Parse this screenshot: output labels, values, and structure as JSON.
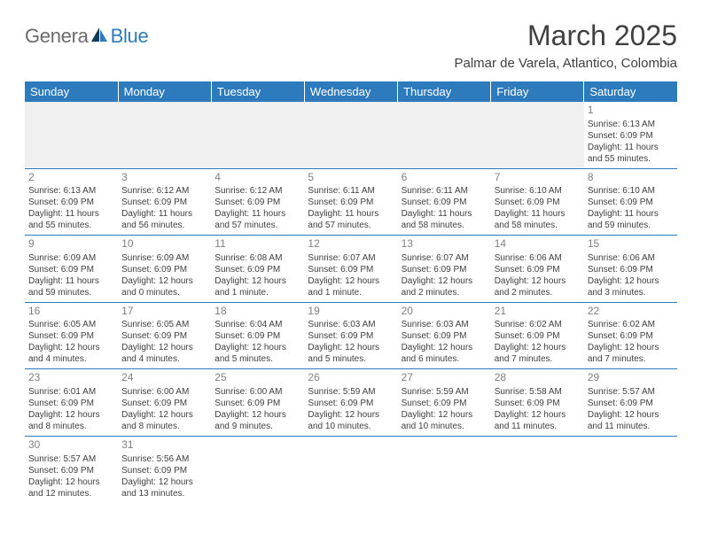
{
  "logo": {
    "text1": "Genera",
    "text2": "Blue"
  },
  "title": "March 2025",
  "location": "Palmar de Varela, Atlantico, Colombia",
  "colors": {
    "header_bg": "#2d7bbd",
    "header_text": "#ffffff",
    "border": "#2d7bbd",
    "daynum": "#808080",
    "body_text": "#404040",
    "empty_bg": "#f0f0f0",
    "logo_gray": "#6b6b6b",
    "logo_blue": "#2d7bbd"
  },
  "weekdays": [
    "Sunday",
    "Monday",
    "Tuesday",
    "Wednesday",
    "Thursday",
    "Friday",
    "Saturday"
  ],
  "weeks": [
    [
      null,
      null,
      null,
      null,
      null,
      null,
      {
        "d": "1",
        "sr": "Sunrise: 6:13 AM",
        "ss": "Sunset: 6:09 PM",
        "dl1": "Daylight: 11 hours",
        "dl2": "and 55 minutes."
      }
    ],
    [
      {
        "d": "2",
        "sr": "Sunrise: 6:13 AM",
        "ss": "Sunset: 6:09 PM",
        "dl1": "Daylight: 11 hours",
        "dl2": "and 55 minutes."
      },
      {
        "d": "3",
        "sr": "Sunrise: 6:12 AM",
        "ss": "Sunset: 6:09 PM",
        "dl1": "Daylight: 11 hours",
        "dl2": "and 56 minutes."
      },
      {
        "d": "4",
        "sr": "Sunrise: 6:12 AM",
        "ss": "Sunset: 6:09 PM",
        "dl1": "Daylight: 11 hours",
        "dl2": "and 57 minutes."
      },
      {
        "d": "5",
        "sr": "Sunrise: 6:11 AM",
        "ss": "Sunset: 6:09 PM",
        "dl1": "Daylight: 11 hours",
        "dl2": "and 57 minutes."
      },
      {
        "d": "6",
        "sr": "Sunrise: 6:11 AM",
        "ss": "Sunset: 6:09 PM",
        "dl1": "Daylight: 11 hours",
        "dl2": "and 58 minutes."
      },
      {
        "d": "7",
        "sr": "Sunrise: 6:10 AM",
        "ss": "Sunset: 6:09 PM",
        "dl1": "Daylight: 11 hours",
        "dl2": "and 58 minutes."
      },
      {
        "d": "8",
        "sr": "Sunrise: 6:10 AM",
        "ss": "Sunset: 6:09 PM",
        "dl1": "Daylight: 11 hours",
        "dl2": "and 59 minutes."
      }
    ],
    [
      {
        "d": "9",
        "sr": "Sunrise: 6:09 AM",
        "ss": "Sunset: 6:09 PM",
        "dl1": "Daylight: 11 hours",
        "dl2": "and 59 minutes."
      },
      {
        "d": "10",
        "sr": "Sunrise: 6:09 AM",
        "ss": "Sunset: 6:09 PM",
        "dl1": "Daylight: 12 hours",
        "dl2": "and 0 minutes."
      },
      {
        "d": "11",
        "sr": "Sunrise: 6:08 AM",
        "ss": "Sunset: 6:09 PM",
        "dl1": "Daylight: 12 hours",
        "dl2": "and 1 minute."
      },
      {
        "d": "12",
        "sr": "Sunrise: 6:07 AM",
        "ss": "Sunset: 6:09 PM",
        "dl1": "Daylight: 12 hours",
        "dl2": "and 1 minute."
      },
      {
        "d": "13",
        "sr": "Sunrise: 6:07 AM",
        "ss": "Sunset: 6:09 PM",
        "dl1": "Daylight: 12 hours",
        "dl2": "and 2 minutes."
      },
      {
        "d": "14",
        "sr": "Sunrise: 6:06 AM",
        "ss": "Sunset: 6:09 PM",
        "dl1": "Daylight: 12 hours",
        "dl2": "and 2 minutes."
      },
      {
        "d": "15",
        "sr": "Sunrise: 6:06 AM",
        "ss": "Sunset: 6:09 PM",
        "dl1": "Daylight: 12 hours",
        "dl2": "and 3 minutes."
      }
    ],
    [
      {
        "d": "16",
        "sr": "Sunrise: 6:05 AM",
        "ss": "Sunset: 6:09 PM",
        "dl1": "Daylight: 12 hours",
        "dl2": "and 4 minutes."
      },
      {
        "d": "17",
        "sr": "Sunrise: 6:05 AM",
        "ss": "Sunset: 6:09 PM",
        "dl1": "Daylight: 12 hours",
        "dl2": "and 4 minutes."
      },
      {
        "d": "18",
        "sr": "Sunrise: 6:04 AM",
        "ss": "Sunset: 6:09 PM",
        "dl1": "Daylight: 12 hours",
        "dl2": "and 5 minutes."
      },
      {
        "d": "19",
        "sr": "Sunrise: 6:03 AM",
        "ss": "Sunset: 6:09 PM",
        "dl1": "Daylight: 12 hours",
        "dl2": "and 5 minutes."
      },
      {
        "d": "20",
        "sr": "Sunrise: 6:03 AM",
        "ss": "Sunset: 6:09 PM",
        "dl1": "Daylight: 12 hours",
        "dl2": "and 6 minutes."
      },
      {
        "d": "21",
        "sr": "Sunrise: 6:02 AM",
        "ss": "Sunset: 6:09 PM",
        "dl1": "Daylight: 12 hours",
        "dl2": "and 7 minutes."
      },
      {
        "d": "22",
        "sr": "Sunrise: 6:02 AM",
        "ss": "Sunset: 6:09 PM",
        "dl1": "Daylight: 12 hours",
        "dl2": "and 7 minutes."
      }
    ],
    [
      {
        "d": "23",
        "sr": "Sunrise: 6:01 AM",
        "ss": "Sunset: 6:09 PM",
        "dl1": "Daylight: 12 hours",
        "dl2": "and 8 minutes."
      },
      {
        "d": "24",
        "sr": "Sunrise: 6:00 AM",
        "ss": "Sunset: 6:09 PM",
        "dl1": "Daylight: 12 hours",
        "dl2": "and 8 minutes."
      },
      {
        "d": "25",
        "sr": "Sunrise: 6:00 AM",
        "ss": "Sunset: 6:09 PM",
        "dl1": "Daylight: 12 hours",
        "dl2": "and 9 minutes."
      },
      {
        "d": "26",
        "sr": "Sunrise: 5:59 AM",
        "ss": "Sunset: 6:09 PM",
        "dl1": "Daylight: 12 hours",
        "dl2": "and 10 minutes."
      },
      {
        "d": "27",
        "sr": "Sunrise: 5:59 AM",
        "ss": "Sunset: 6:09 PM",
        "dl1": "Daylight: 12 hours",
        "dl2": "and 10 minutes."
      },
      {
        "d": "28",
        "sr": "Sunrise: 5:58 AM",
        "ss": "Sunset: 6:09 PM",
        "dl1": "Daylight: 12 hours",
        "dl2": "and 11 minutes."
      },
      {
        "d": "29",
        "sr": "Sunrise: 5:57 AM",
        "ss": "Sunset: 6:09 PM",
        "dl1": "Daylight: 12 hours",
        "dl2": "and 11 minutes."
      }
    ],
    [
      {
        "d": "30",
        "sr": "Sunrise: 5:57 AM",
        "ss": "Sunset: 6:09 PM",
        "dl1": "Daylight: 12 hours",
        "dl2": "and 12 minutes."
      },
      {
        "d": "31",
        "sr": "Sunrise: 5:56 AM",
        "ss": "Sunset: 6:09 PM",
        "dl1": "Daylight: 12 hours",
        "dl2": "and 13 minutes."
      },
      null,
      null,
      null,
      null,
      null
    ]
  ]
}
